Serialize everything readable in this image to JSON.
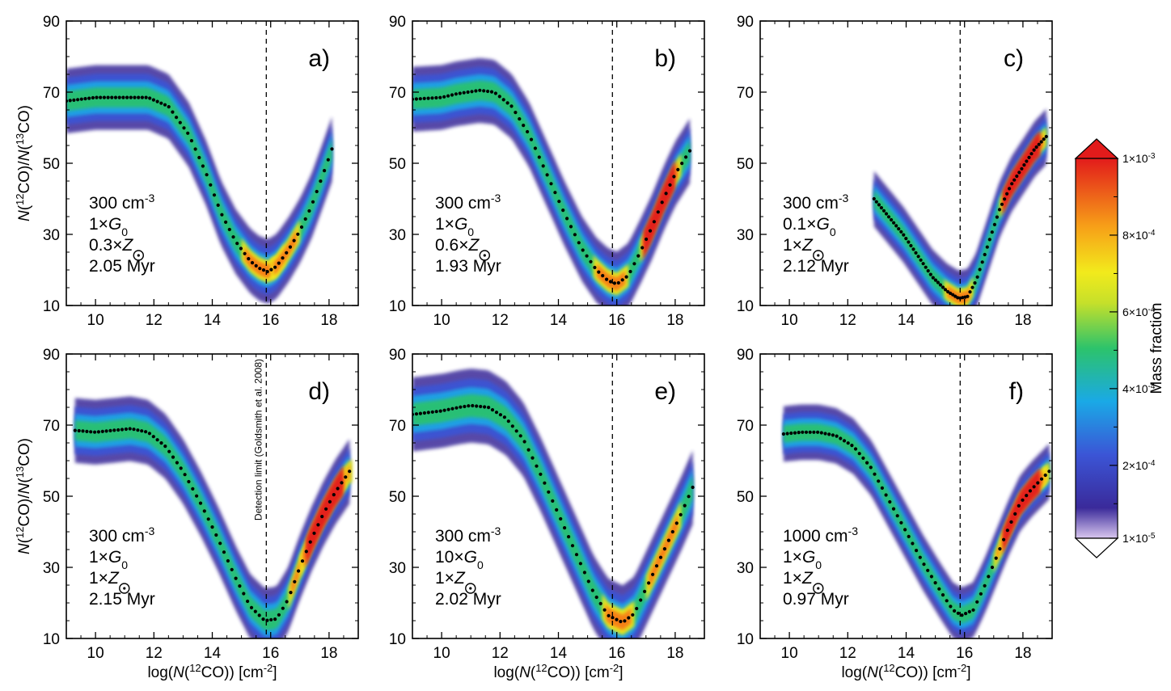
{
  "chart_data": {
    "type": "scatter",
    "shared_axes": {
      "x_label": [
        "log(",
        "N",
        "(",
        "12",
        "CO)) [cm",
        "-2",
        "]"
      ],
      "y_label": [
        "N",
        "(",
        "12",
        "CO)/",
        "N",
        "(",
        "13",
        "CO)"
      ],
      "xlim": [
        9,
        19
      ],
      "ylim": [
        10,
        90
      ],
      "x_ticks": [
        "10",
        "12",
        "14",
        "16",
        "18"
      ],
      "y_ticks": [
        "10",
        "30",
        "50",
        "70",
        "90"
      ],
      "detection_limit_x": 15.85,
      "detection_limit_label": "Detection limit (Goldsmith et al. 2008)"
    },
    "colorbar": {
      "label": "Mass fraction",
      "ticks": [
        "1×10",
        "2×10",
        "4×10",
        "6×10",
        "8×10",
        "1×10"
      ],
      "tick_exponents": [
        "-5",
        "-4",
        "-4",
        "-4",
        "-4",
        "-3"
      ],
      "tick_values": [
        1e-05,
        0.0002,
        0.0004,
        0.0006,
        0.0008,
        0.001
      ],
      "colors": [
        "#2b1f8a",
        "#3b55d6",
        "#1aa9e6",
        "#2cc36b",
        "#f2ea1c",
        "#f77c14",
        "#e21b1b"
      ]
    },
    "panels": [
      {
        "id": "a",
        "label": "a)",
        "annotation": {
          "density": "300 cm",
          "density_exp": "-3",
          "g0": "1×",
          "g0_sym": "G",
          "g0_sub": "0",
          "z": "0.3×",
          "z_sym": "Z",
          "age": "2.05 Myr"
        },
        "median_curve": [
          [
            9.0,
            67.5
          ],
          [
            10.0,
            68.5
          ],
          [
            11.0,
            68.5
          ],
          [
            11.8,
            68.5
          ],
          [
            12.5,
            66
          ],
          [
            13.2,
            58
          ],
          [
            13.8,
            47
          ],
          [
            14.3,
            36
          ],
          [
            14.8,
            28
          ],
          [
            15.3,
            22.5
          ],
          [
            15.6,
            20.5
          ],
          [
            15.9,
            19.5
          ],
          [
            16.2,
            21
          ],
          [
            16.6,
            25.5
          ],
          [
            17.0,
            31
          ],
          [
            17.4,
            38
          ],
          [
            17.8,
            47
          ],
          [
            18.1,
            54
          ]
        ],
        "spread": 3.5,
        "hot": [
          [
            15.0,
            16.5
          ],
          [
            16.0,
            17.0
          ]
        ],
        "hot2": null
      },
      {
        "id": "b",
        "label": "b)",
        "annotation": {
          "density": "300 cm",
          "density_exp": "-3",
          "g0": "1×",
          "g0_sym": "G",
          "g0_sub": "0",
          "z": "0.6×",
          "z_sym": "Z",
          "age": "1.93 Myr"
        },
        "median_curve": [
          [
            9.0,
            68
          ],
          [
            10.0,
            68.5
          ],
          [
            10.5,
            69.5
          ],
          [
            11.3,
            70.5
          ],
          [
            11.8,
            70
          ],
          [
            12.4,
            66
          ],
          [
            13.0,
            58
          ],
          [
            13.6,
            47
          ],
          [
            14.2,
            36
          ],
          [
            14.8,
            26
          ],
          [
            15.3,
            20
          ],
          [
            15.7,
            17
          ],
          [
            16.0,
            16
          ],
          [
            16.4,
            18.5
          ],
          [
            16.8,
            25
          ],
          [
            17.2,
            32
          ],
          [
            17.6,
            40
          ],
          [
            18.0,
            47
          ],
          [
            18.5,
            53.5
          ]
        ],
        "spread": 3.5,
        "hot": [
          [
            15.2,
            16.4
          ],
          [
            16.8,
            18.2
          ]
        ],
        "hot2": [
          16.9,
          18.0
        ]
      },
      {
        "id": "c",
        "label": "c)",
        "annotation": {
          "density": "300 cm",
          "density_exp": "-3",
          "g0": "0.1×",
          "g0_sym": "G",
          "g0_sub": "0",
          "z": "1×",
          "z_sym": "Z",
          "age": "2.12 Myr"
        },
        "median_curve": [
          [
            12.9,
            40
          ],
          [
            13.4,
            35
          ],
          [
            13.9,
            30
          ],
          [
            14.4,
            24
          ],
          [
            14.9,
            18
          ],
          [
            15.4,
            14
          ],
          [
            15.8,
            12
          ],
          [
            16.1,
            12.5
          ],
          [
            16.4,
            17
          ],
          [
            16.8,
            27
          ],
          [
            17.2,
            37
          ],
          [
            17.6,
            44
          ],
          [
            18.0,
            49
          ],
          [
            18.4,
            54
          ],
          [
            18.8,
            57.5
          ]
        ],
        "spread": 3.0,
        "hot": [
          [
            15.3,
            16.3
          ],
          [
            17.2,
            18.8
          ]
        ],
        "hot2": [
          17.3,
          18.6
        ]
      },
      {
        "id": "d",
        "label": "d)",
        "annotation": {
          "density": "300 cm",
          "density_exp": "-3",
          "g0": "1×",
          "g0_sym": "G",
          "g0_sub": "0",
          "z": "1×",
          "z_sym": "Z",
          "age": "2.15 Myr"
        },
        "median_curve": [
          [
            9.3,
            68.5
          ],
          [
            10.0,
            68
          ],
          [
            10.6,
            68.5
          ],
          [
            11.2,
            69
          ],
          [
            11.8,
            68
          ],
          [
            12.4,
            64
          ],
          [
            13.0,
            57
          ],
          [
            13.6,
            48
          ],
          [
            14.2,
            38
          ],
          [
            14.8,
            27
          ],
          [
            15.3,
            19
          ],
          [
            15.8,
            15
          ],
          [
            16.2,
            15.5
          ],
          [
            16.6,
            21
          ],
          [
            17.0,
            30
          ],
          [
            17.4,
            38
          ],
          [
            17.8,
            45
          ],
          [
            18.2,
            51
          ],
          [
            18.7,
            57
          ]
        ],
        "spread": 3.5,
        "hot": [
          [
            16.6,
            18.8
          ],
          [
            17.0,
            18.6
          ]
        ],
        "hot2": [
          17.2,
          18.5
        ]
      },
      {
        "id": "e",
        "label": "e)",
        "annotation": {
          "density": "300 cm",
          "density_exp": "-3",
          "g0": "10×",
          "g0_sym": "G",
          "g0_sub": "0",
          "z": "1×",
          "z_sym": "Z",
          "age": "2.02 Myr"
        },
        "median_curve": [
          [
            9.0,
            73
          ],
          [
            10.0,
            74
          ],
          [
            10.6,
            75
          ],
          [
            11.0,
            75.5
          ],
          [
            11.6,
            75
          ],
          [
            12.2,
            72
          ],
          [
            12.8,
            66
          ],
          [
            13.4,
            56
          ],
          [
            14.0,
            45
          ],
          [
            14.6,
            34
          ],
          [
            15.2,
            23
          ],
          [
            15.7,
            16.5
          ],
          [
            16.2,
            14.5
          ],
          [
            16.6,
            17
          ],
          [
            17.0,
            24
          ],
          [
            17.4,
            31
          ],
          [
            17.8,
            38
          ],
          [
            18.2,
            45
          ],
          [
            18.6,
            52.5
          ]
        ],
        "spread": 4.0,
        "hot": [
          [
            15.5,
            16.6
          ],
          [
            17.0,
            18.2
          ]
        ],
        "hot2": null
      },
      {
        "id": "f",
        "label": "f)",
        "annotation": {
          "density": "1000 cm",
          "density_exp": "-3",
          "g0": "1×",
          "g0_sym": "G",
          "g0_sub": "0",
          "z": "1×",
          "z_sym": "Z",
          "age": "0.97 Myr"
        },
        "median_curve": [
          [
            9.8,
            67.5
          ],
          [
            10.4,
            68
          ],
          [
            11.0,
            68
          ],
          [
            11.6,
            67
          ],
          [
            12.2,
            64
          ],
          [
            12.8,
            58
          ],
          [
            13.4,
            49
          ],
          [
            14.0,
            40
          ],
          [
            14.6,
            31
          ],
          [
            15.2,
            23
          ],
          [
            15.6,
            18
          ],
          [
            15.9,
            16.5
          ],
          [
            16.3,
            18
          ],
          [
            16.7,
            25
          ],
          [
            17.1,
            33
          ],
          [
            17.5,
            41
          ],
          [
            17.9,
            48
          ],
          [
            18.3,
            52
          ],
          [
            18.9,
            57
          ]
        ],
        "spread": 3.0,
        "hot": [
          [
            17.0,
            18.9
          ],
          [
            17.2,
            18.8
          ]
        ],
        "hot2": [
          17.3,
          18.6
        ]
      }
    ]
  }
}
